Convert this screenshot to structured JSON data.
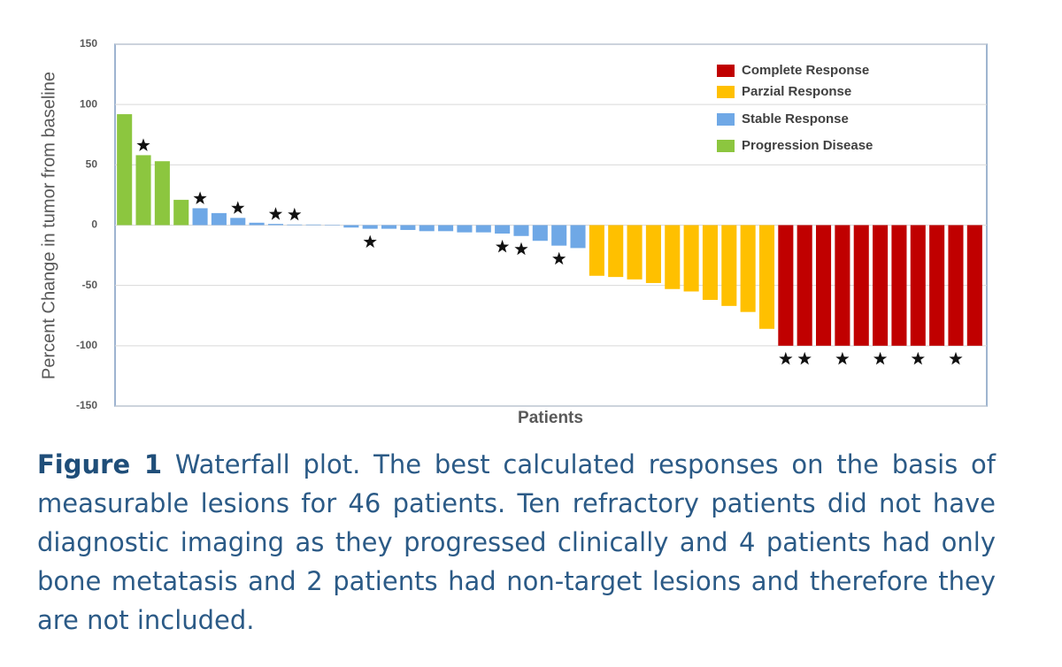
{
  "chart_data": {
    "type": "waterfall",
    "ylabel": "Percent Change in tumor from baseline",
    "xlabel": "Patients",
    "ylim": [
      -150,
      150
    ],
    "yticks": [
      150,
      100,
      50,
      0,
      -50,
      -100,
      -150
    ],
    "grid": true,
    "legend": "top-right",
    "series": [
      {
        "name": "Complete Response",
        "color": "#c00000",
        "values": [
          -100,
          -100,
          -100,
          -100,
          -100,
          -100,
          -100,
          -100,
          -100,
          -100,
          -100
        ],
        "starred": [
          true,
          true,
          false,
          true,
          false,
          true,
          false,
          true,
          false,
          true,
          false
        ]
      },
      {
        "name": "Parzial Response",
        "color": "#ffc000",
        "values": [
          -42,
          -43,
          -45,
          -48,
          -53,
          -55,
          -62,
          -67,
          -72,
          -86
        ],
        "starred": [
          false,
          false,
          false,
          false,
          false,
          false,
          false,
          false,
          false,
          false
        ]
      },
      {
        "name": "Stable Response",
        "color": "#6fa8e6",
        "values": [
          14,
          10,
          6,
          2,
          1,
          0.5,
          0.5,
          0,
          -2,
          -3,
          -3,
          -4,
          -5,
          -5,
          -6,
          -6,
          -7,
          -9,
          -13,
          -17,
          -19
        ],
        "starred": [
          true,
          false,
          true,
          false,
          true,
          true,
          false,
          false,
          false,
          true,
          false,
          false,
          false,
          false,
          false,
          false,
          true,
          true,
          false,
          true,
          false
        ]
      },
      {
        "name": "Progression Disease",
        "color": "#8cc63f",
        "values": [
          92,
          58,
          53,
          21
        ],
        "starred": [
          false,
          true,
          false,
          false
        ]
      }
    ]
  },
  "caption": {
    "label": "Figure 1",
    "text": "Waterfall plot. The best calculated responses on the basis of measurable lesions for 46 patients. Ten refractory patients did not have diagnostic imaging as they progressed clinically and 4 patients had only bone metatasis and 2 patients had non-target lesions and therefore they are not included."
  }
}
